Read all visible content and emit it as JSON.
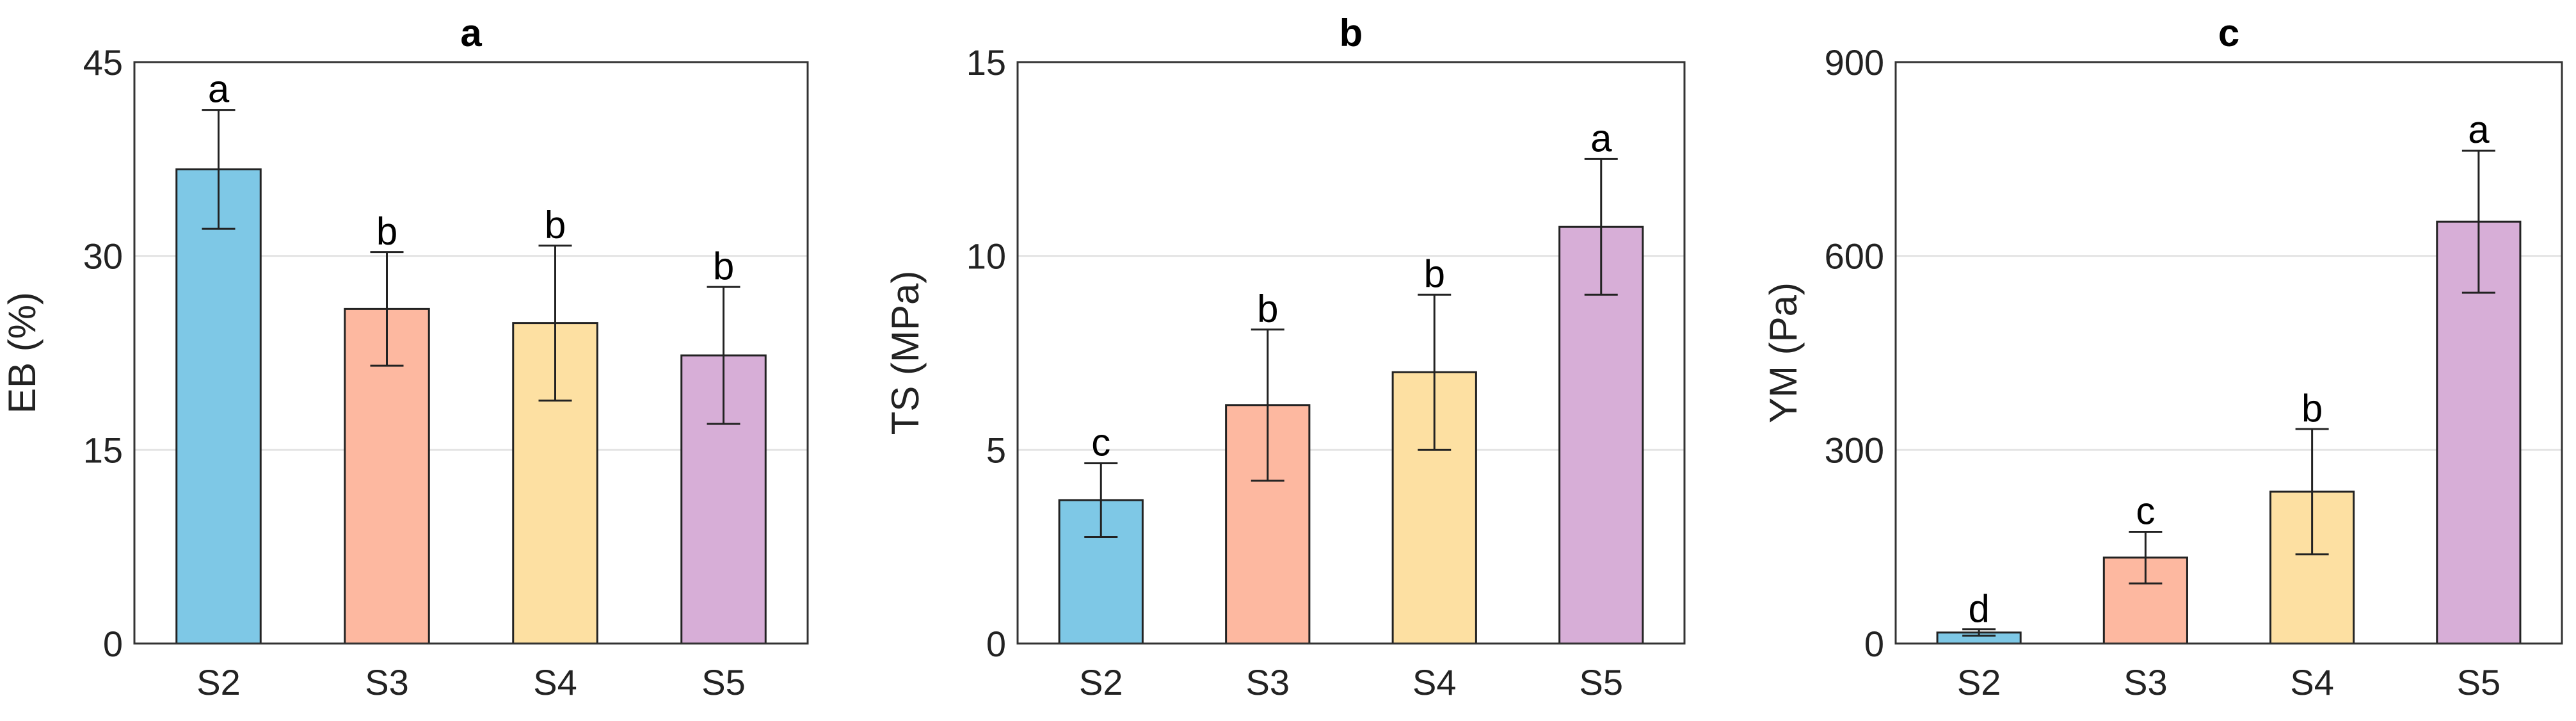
{
  "chart_data": [
    {
      "type": "bar",
      "title": "a",
      "ylabel": "EB (%)",
      "xlabel": "",
      "categories": [
        "S2",
        "S3",
        "S4",
        "S5"
      ],
      "values": [
        36.7,
        25.9,
        24.8,
        22.3
      ],
      "errors": [
        4.6,
        4.4,
        6.0,
        5.3
      ],
      "significance": [
        "a",
        "b",
        "b",
        "b"
      ],
      "ylim": [
        0,
        45
      ],
      "yticks": [
        0,
        15,
        30,
        45
      ],
      "ytick_labels": [
        "0",
        "15",
        "30",
        "45"
      ],
      "grid": true
    },
    {
      "type": "bar",
      "title": "b",
      "ylabel": "TS (MPa)",
      "xlabel": "",
      "categories": [
        "S2",
        "S3",
        "S4",
        "S5"
      ],
      "values": [
        3.7,
        6.15,
        7.0,
        10.75
      ],
      "errors": [
        0.95,
        1.95,
        2.0,
        1.75
      ],
      "significance": [
        "c",
        "b",
        "b",
        "a"
      ],
      "ylim": [
        0,
        15
      ],
      "yticks": [
        0,
        5,
        10,
        15
      ],
      "ytick_labels": [
        "0",
        "5",
        "10",
        "15"
      ],
      "grid": true
    },
    {
      "type": "bar",
      "title": "c",
      "ylabel": "YM (Pa)",
      "xlabel": "",
      "categories": [
        "S2",
        "S3",
        "S4",
        "S5"
      ],
      "values": [
        17,
        133,
        235,
        653
      ],
      "errors": [
        5,
        40,
        97,
        110
      ],
      "significance": [
        "d",
        "c",
        "b",
        "a"
      ],
      "ylim": [
        0,
        900
      ],
      "yticks": [
        0,
        300,
        600,
        900
      ],
      "ytick_labels": [
        "0",
        "300",
        "600",
        "900"
      ],
      "grid": true
    }
  ],
  "colors": {
    "S2": "#7ec8e6",
    "S3": "#fdb8a0",
    "S4": "#fde0a2",
    "S5": "#d7aed7"
  }
}
